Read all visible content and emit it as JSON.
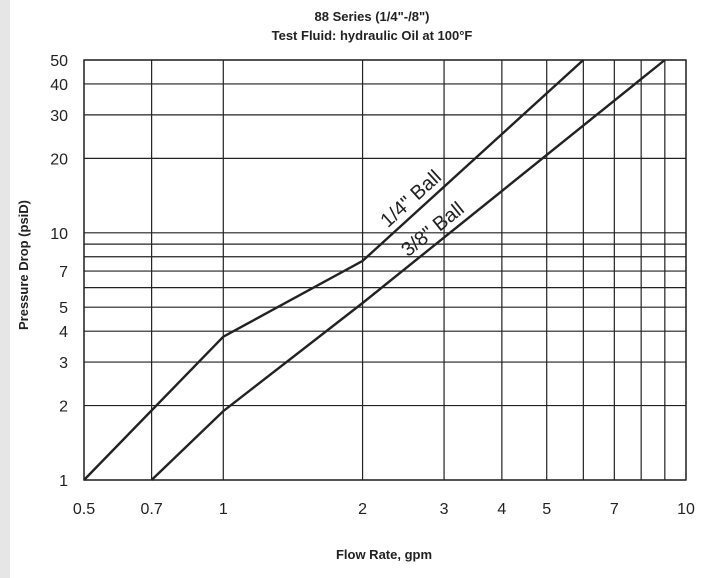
{
  "chart_data": {
    "type": "line",
    "title": "88 Series (1/4\"-/8\")",
    "subtitle": "Test Fluid: hydraulic Oil at 100°F",
    "xlabel": "Flow Rate, gpm",
    "ylabel": "Pressure Drop (psiD)",
    "xscale": "log",
    "yscale": "log",
    "xlim": [
      0.5,
      10
    ],
    "ylim": [
      1,
      50
    ],
    "grid": true,
    "x_ticks": [
      0.5,
      0.7,
      1,
      2,
      3,
      4,
      5,
      7,
      10
    ],
    "x_tick_labels": [
      "0.5",
      "0.7",
      "1",
      "2",
      "3",
      "4",
      "5",
      "7",
      "10"
    ],
    "x_grid": [
      0.5,
      0.7,
      1,
      2,
      3,
      4,
      5,
      6,
      7,
      8,
      9,
      10
    ],
    "y_ticks": [
      1,
      2,
      3,
      4,
      5,
      7,
      10,
      20,
      30,
      40,
      50
    ],
    "y_tick_labels": [
      "1",
      "2",
      "3",
      "4",
      "5",
      "7",
      "10",
      "20",
      "30",
      "40",
      "50"
    ],
    "y_grid": [
      1,
      2,
      3,
      4,
      5,
      6,
      7,
      8,
      9,
      10,
      20,
      30,
      40,
      50
    ],
    "series": [
      {
        "name": "1/4\" Ball",
        "x": [
          0.5,
          1,
          2,
          6
        ],
        "y": [
          1,
          3.8,
          7.7,
          50
        ]
      },
      {
        "name": "3/8\" Ball",
        "x": [
          0.7,
          1,
          2,
          9
        ],
        "y": [
          1,
          1.9,
          5.2,
          50
        ]
      }
    ]
  }
}
